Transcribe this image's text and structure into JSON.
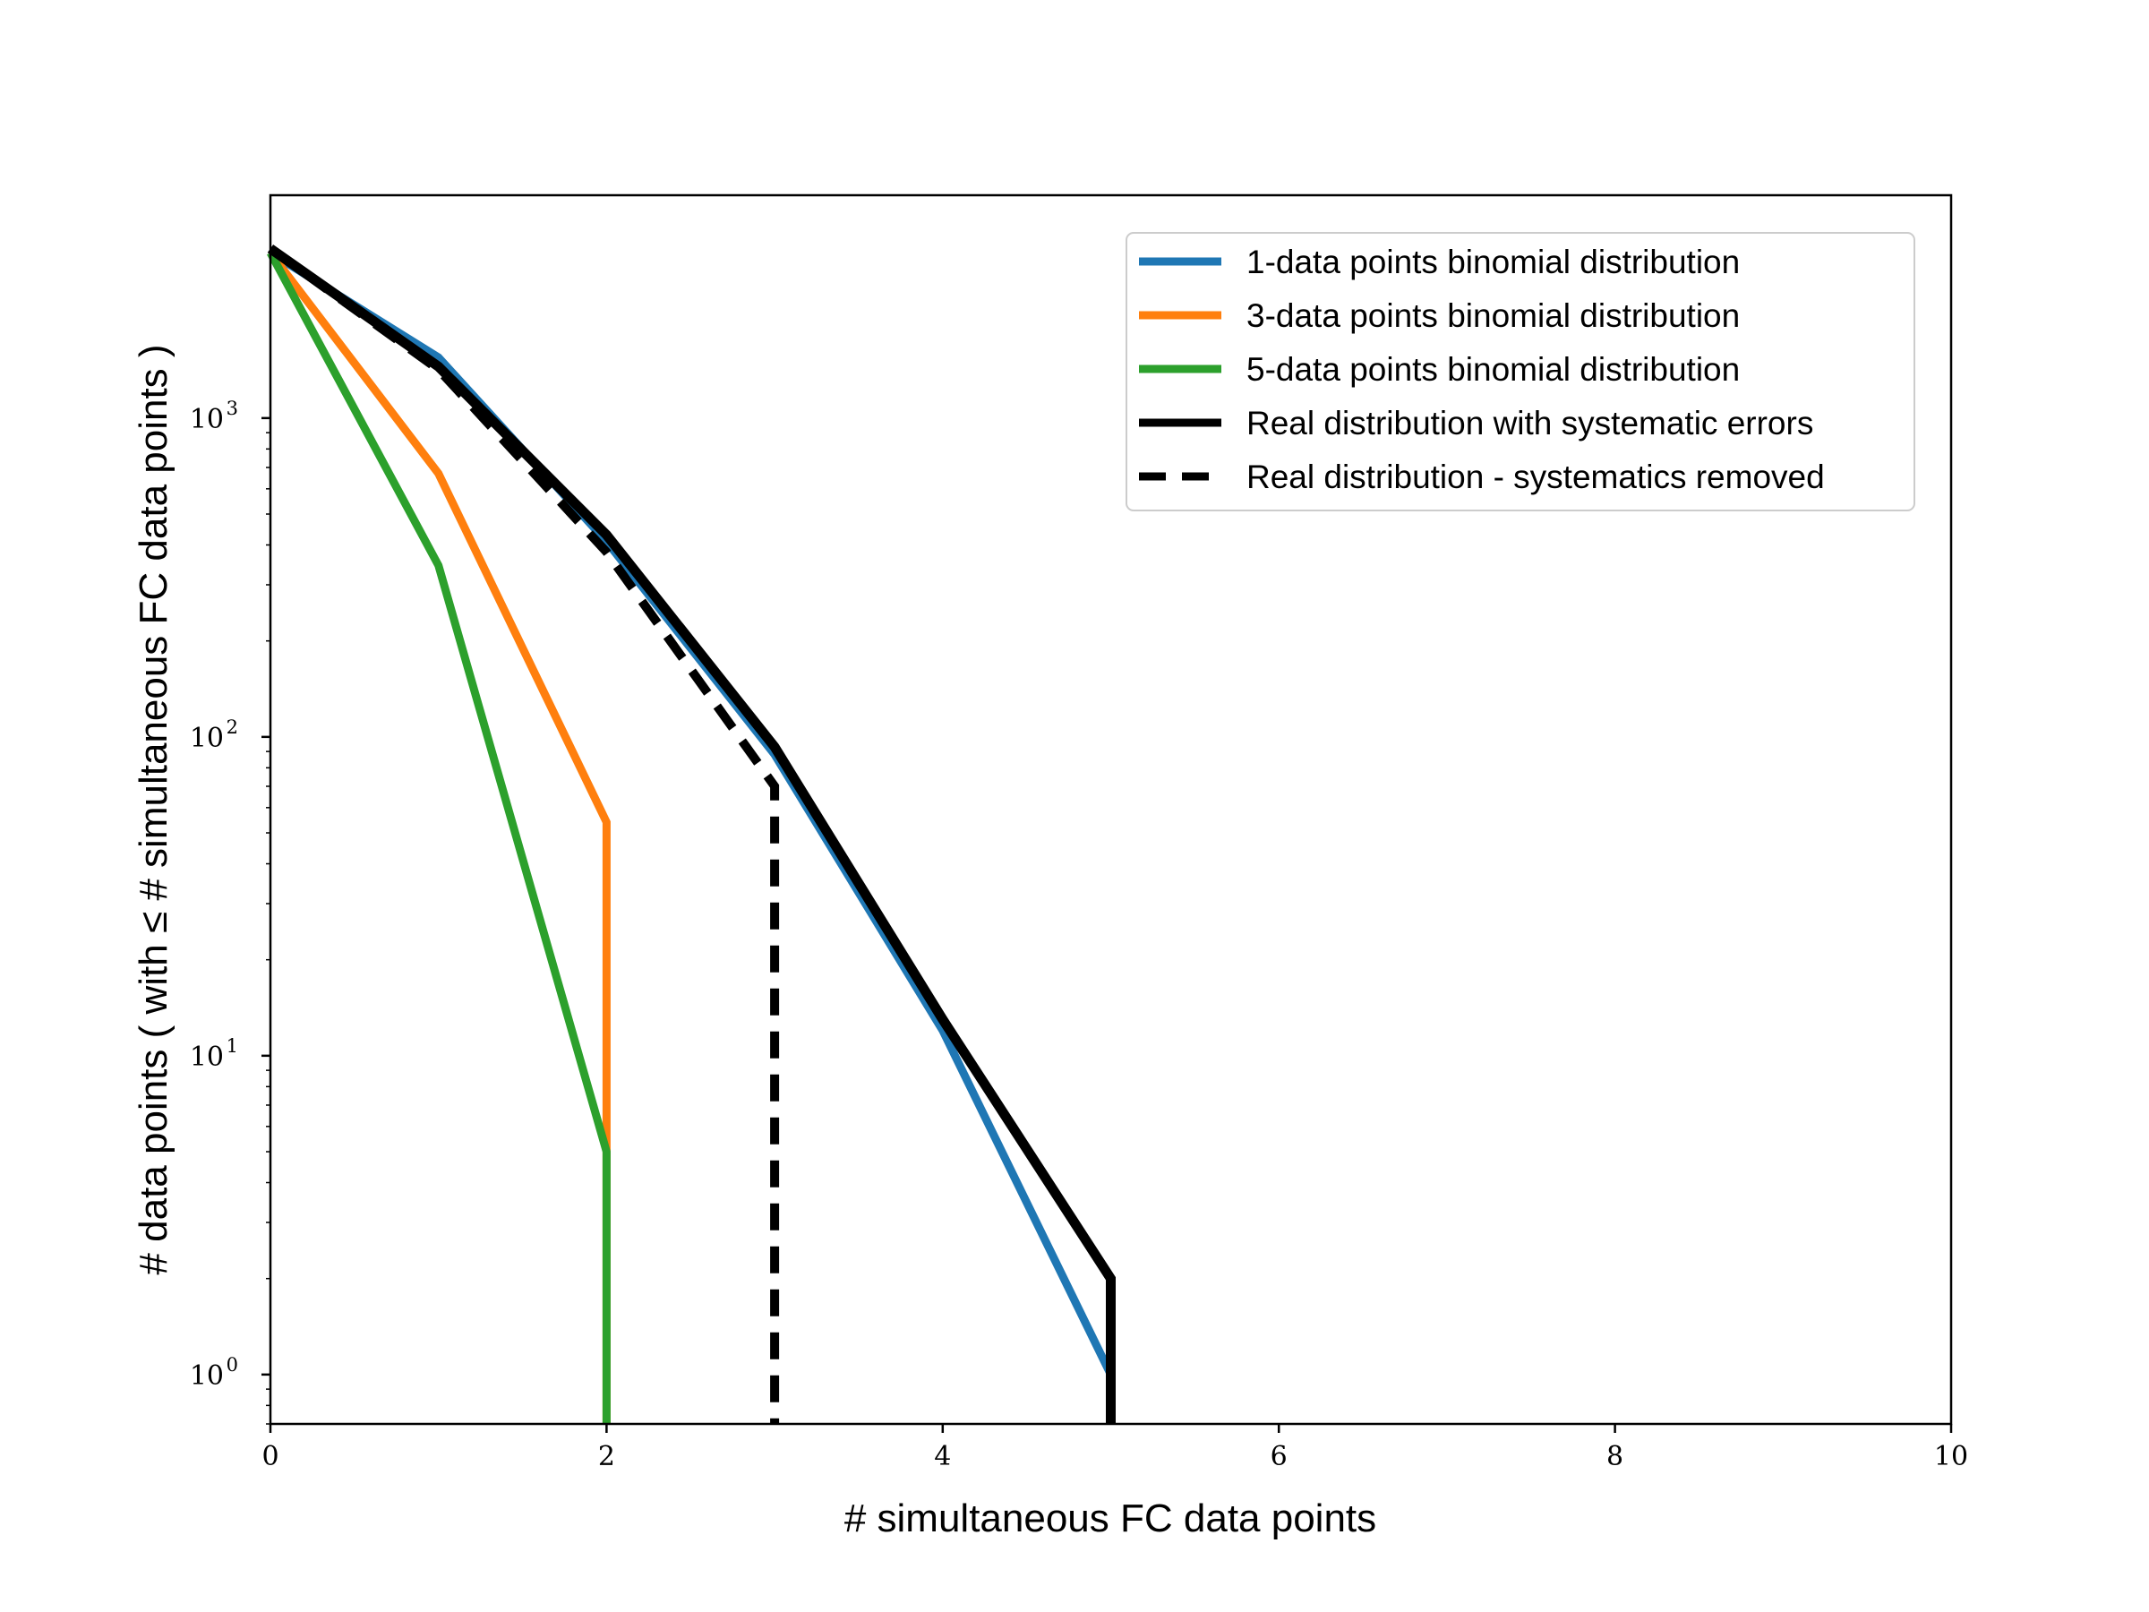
{
  "chart_data": {
    "type": "line",
    "title": "",
    "xlabel": "# simultaneous FC data points",
    "ylabel": "# data points ( with ≤ # simultaneous FC data points )",
    "xlim": [
      0,
      10
    ],
    "ylim": [
      0.7,
      5000
    ],
    "yscale": "log",
    "x_ticks": [
      0,
      2,
      4,
      6,
      8,
      10
    ],
    "y_ticks": [
      {
        "value": 1,
        "base": "10",
        "exp": "0"
      },
      {
        "value": 10,
        "base": "10",
        "exp": "1"
      },
      {
        "value": 100,
        "base": "10",
        "exp": "2"
      },
      {
        "value": 1000,
        "base": "10",
        "exp": "3"
      }
    ],
    "grid": false,
    "legend_position": "top-right",
    "series": [
      {
        "name": "1-data points binomial distribution",
        "color": "#1f77b4",
        "style": "solid",
        "x": [
          0,
          1,
          2,
          3,
          4,
          5,
          5
        ],
        "y": [
          3300,
          1550,
          410,
          88,
          12,
          1,
          0.7
        ]
      },
      {
        "name": "3-data points binomial distribution",
        "color": "#ff7f0e",
        "style": "solid",
        "x": [
          0,
          1,
          2,
          2
        ],
        "y": [
          3300,
          670,
          54,
          0.7
        ]
      },
      {
        "name": "5-data points binomial distribution",
        "color": "#2ca02c",
        "style": "solid",
        "x": [
          0,
          1,
          2,
          2
        ],
        "y": [
          3300,
          345,
          5,
          0.7
        ]
      },
      {
        "name": "Real distribution with systematic errors",
        "color": "#000000",
        "style": "solid",
        "x": [
          0,
          1,
          2,
          3,
          4,
          5,
          5
        ],
        "y": [
          3400,
          1450,
          430,
          93,
          13,
          2,
          0.7
        ]
      },
      {
        "name": "Real distribution - systematics removed",
        "color": "#000000",
        "style": "dashed",
        "x": [
          0,
          1,
          2,
          3,
          3
        ],
        "y": [
          3400,
          1420,
          380,
          70,
          0.7
        ]
      }
    ]
  }
}
